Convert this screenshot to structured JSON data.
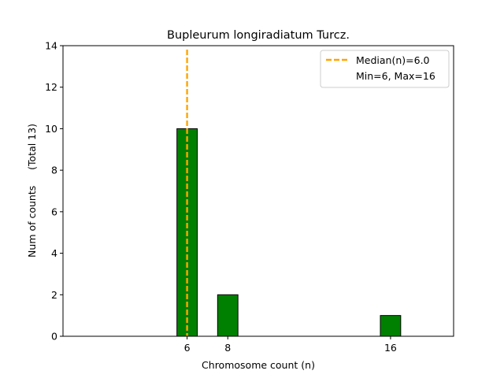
{
  "chart_data": {
    "type": "bar",
    "title": "Bupleurum longiradiatum Turcz.",
    "xlabel": "Chromosome count (n)",
    "ylabel": "Num of counts     (Total 13)",
    "x": [
      6,
      8,
      16
    ],
    "values": [
      10,
      2,
      1
    ],
    "xlim": [
      -0.1,
      19.1
    ],
    "ylim": [
      0,
      14
    ],
    "yticks": [
      0,
      2,
      4,
      6,
      8,
      10,
      12,
      14
    ],
    "xticks": [
      6,
      8,
      16
    ],
    "bar_width": 1,
    "bar_color": "#008000",
    "bar_edge_color": "#000000",
    "median": 6.0,
    "median_color": "#ffa500",
    "grid": false,
    "legend": {
      "placement": "top-right",
      "entries": [
        {
          "label": "Median(n)=6.0",
          "style": "dashed-line",
          "color": "#ffa500"
        },
        {
          "label": "Min=6, Max=16",
          "style": "none"
        }
      ]
    }
  }
}
